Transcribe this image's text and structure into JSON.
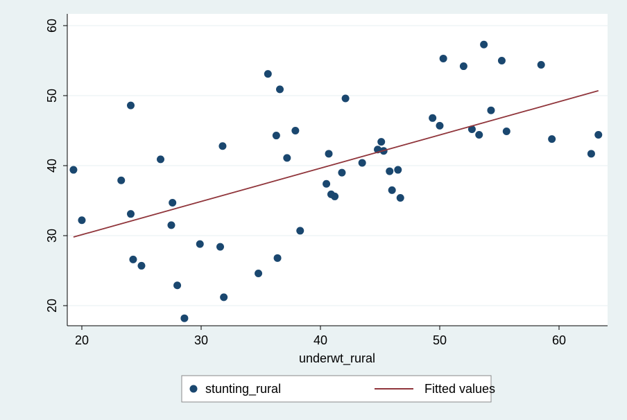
{
  "chart_data": {
    "type": "scatter",
    "x_label": "underwt_rural",
    "xlim": [
      18.78,
      64.07
    ],
    "xticks": [
      20,
      30,
      40,
      50,
      60
    ],
    "ylim": [
      17.13,
      61.68
    ],
    "yticks": [
      20,
      30,
      40,
      50,
      60
    ],
    "grid": true,
    "series": [
      {
        "name": "stunting_rural",
        "type": "scatter",
        "color": "#1a476f",
        "x": [
          19.3,
          20.0,
          23.3,
          24.1,
          24.1,
          24.3,
          25.0,
          26.6,
          27.6,
          27.5,
          28.0,
          28.6,
          29.9,
          31.6,
          31.8,
          31.9,
          34.8,
          35.6,
          36.3,
          36.6,
          36.4,
          37.2,
          37.9,
          38.3,
          40.5,
          40.7,
          40.9,
          41.2,
          41.8,
          42.1,
          43.5,
          44.8,
          45.1,
          45.3,
          45.8,
          46.0,
          46.5,
          46.7,
          49.4,
          50.0,
          50.3,
          52.0,
          52.7,
          53.3,
          53.7,
          54.3,
          55.2,
          55.6,
          58.5,
          59.4,
          62.7,
          63.3
        ],
        "values": [
          39.4,
          32.2,
          37.9,
          48.6,
          33.1,
          26.6,
          25.7,
          40.9,
          34.7,
          31.5,
          22.9,
          18.2,
          28.8,
          28.4,
          42.8,
          21.2,
          24.6,
          53.1,
          44.3,
          50.9,
          26.8,
          41.1,
          45.0,
          30.7,
          37.4,
          41.7,
          35.9,
          35.6,
          39.0,
          49.6,
          40.4,
          42.3,
          43.4,
          42.1,
          39.2,
          36.5,
          39.4,
          35.4,
          46.8,
          45.7,
          55.3,
          54.2,
          45.2,
          44.4,
          57.3,
          47.9,
          55.0,
          44.9,
          54.4,
          43.8,
          41.7,
          44.4
        ]
      },
      {
        "name": "Fitted values",
        "type": "line",
        "color": "#90353b",
        "x": [
          19.3,
          63.3
        ],
        "values": [
          29.8,
          50.7
        ]
      }
    ]
  }
}
